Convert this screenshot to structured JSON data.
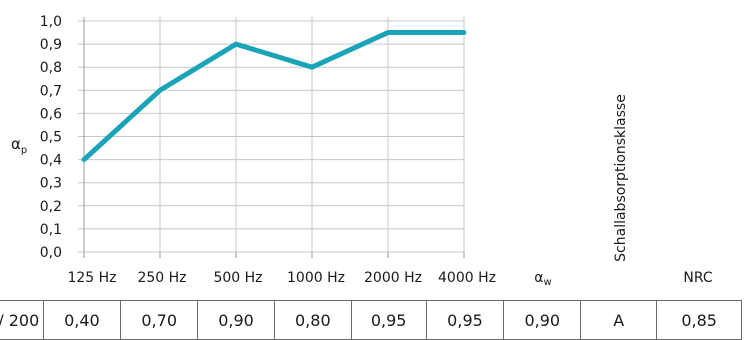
{
  "chart_data": {
    "type": "line",
    "categories": [
      "125 Hz",
      "250 Hz",
      "500 Hz",
      "1000 Hz",
      "2000 Hz",
      "4000 Hz"
    ],
    "series": [
      {
        "values": [
          0.4,
          0.7,
          0.9,
          0.8,
          0.95,
          0.95
        ]
      }
    ],
    "ylabel": "α",
    "ylabel_sub": "p",
    "ylim": [
      0.0,
      1.0
    ],
    "yticks": [
      "0,0",
      "0,1",
      "0,2",
      "0,3",
      "0,4",
      "0,5",
      "0,6",
      "0,7",
      "0,8",
      "0,9",
      "1,0"
    ],
    "grid": true,
    "line_color": "#1ba3b8"
  },
  "table": {
    "headers": {
      "alpha_w": "α",
      "alpha_w_sub": "w",
      "klasse": "Schallabsorptionsklasse",
      "nrc": "NRC"
    },
    "row": [
      "/ 200",
      "0,40",
      "0,70",
      "0,90",
      "0,80",
      "0,95",
      "0,95",
      "0,90",
      "A",
      "0,85"
    ]
  }
}
